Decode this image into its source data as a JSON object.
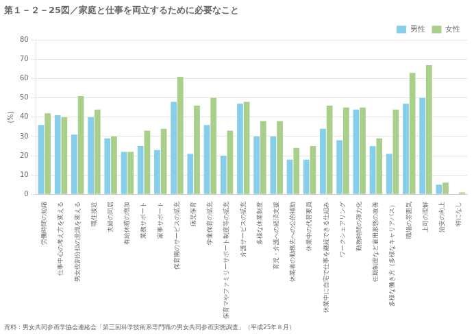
{
  "chart_data": {
    "type": "bar",
    "title": "第１－２－25図／家庭と仕事を両立するために必要なこと",
    "ylabel": "(%)",
    "source": "資料：男女共同参画学協会連絡会「第三回科学技術系専門職の男女共同参画実態調査」（平成25年８月）",
    "categories": [
      "労働時間の短縮",
      "仕事中心の考え方を変える",
      "男女役割分担の意識を変える",
      "職住接近",
      "夫婦の同居",
      "有給休暇の増加",
      "業務サポート",
      "家事サポート",
      "保育園のサービスの拡充",
      "病児保育",
      "学童保育の拡充",
      "保育マやファミリーサポート制度等の拡充",
      "介護サービスの拡充",
      "多様な休業制度",
      "育児・介護への経済支援",
      "休業者の勤務先への公的補助",
      "休業中の代替要員",
      "休業中に自宅で仕事を継続できる仕組み",
      "ワークシェアリング",
      "勤務時間の弾力化",
      "任期制度など雇用形態の改善",
      "多様な働き方（多様なキャリアパス）",
      "職場の雰囲気",
      "上司の理解",
      "治安の向上",
      "特になし"
    ],
    "series": [
      {
        "name": "男性",
        "color": "#87CEEB",
        "values": [
          36,
          41,
          31,
          40,
          29,
          22,
          25,
          23,
          48,
          21,
          36,
          20,
          47,
          30,
          30,
          18,
          18,
          34,
          28,
          44,
          25,
          21,
          47,
          50,
          5,
          0
        ]
      },
      {
        "name": "女性",
        "color": "#AACF8A",
        "values": [
          42,
          40,
          51,
          44,
          30,
          22,
          33,
          34,
          61,
          46,
          50,
          33,
          48,
          38,
          38,
          24,
          25,
          46,
          45,
          45,
          29,
          44,
          63,
          67,
          6,
          1
        ]
      }
    ],
    "ylim": [
      0,
      80
    ],
    "yticks": [
      0,
      10,
      20,
      30,
      40,
      50,
      60,
      70,
      80
    ],
    "grid": true,
    "legend": "upper right"
  }
}
